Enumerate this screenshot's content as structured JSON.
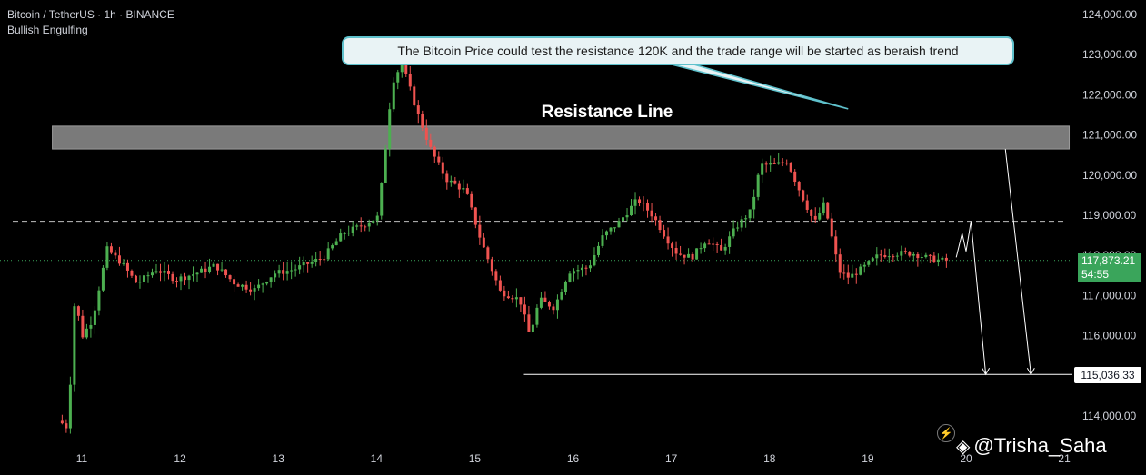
{
  "header": {
    "title": "Bitcoin / TetherUS · 1h · BINANCE",
    "subtitle": "Bullish Engulfing"
  },
  "annotation": {
    "callout_text": "The Bitcoin Price could test the resistance 120K and the trade range will be started as beraish trend",
    "resistance_label": "Resistance Line"
  },
  "price_tag": {
    "price": "117,873.21",
    "countdown": "54:55"
  },
  "level_tag": {
    "value": "115,036.33"
  },
  "watermark": {
    "text": "@Trisha_Saha",
    "logo_icon": "binance-logo-icon"
  },
  "colors": {
    "up": "#4caf50",
    "down": "#ef5350",
    "background": "#000000",
    "resistance_zone": "#7a7a7a",
    "callout_border": "#5fc1cc",
    "price_tag": "#3aa55b"
  },
  "chart_data": {
    "type": "candlestick",
    "symbol": "Bitcoin / TetherUS",
    "interval": "1h",
    "exchange": "BINANCE",
    "y_axis": {
      "ticks": [
        114000,
        115000,
        116000,
        117000,
        118000,
        119000,
        120000,
        121000,
        122000,
        123000,
        124000
      ],
      "tick_labels": [
        "114,000.00",
        "115,000.00",
        "116,000.00",
        "117,000.00",
        "118,000.00",
        "119,000.00",
        "120,000.00",
        "121,000.00",
        "122,000.00",
        "123,000.00",
        "124,000.00"
      ],
      "range": [
        113400,
        124300
      ]
    },
    "x_axis": {
      "tick_labels": [
        "11",
        "12",
        "13",
        "14",
        "15",
        "16",
        "17",
        "18",
        "19",
        "20",
        "21"
      ],
      "tick_days": [
        11,
        12,
        13,
        14,
        15,
        16,
        17,
        18,
        19,
        20,
        21
      ],
      "range": [
        10.7,
        21.1
      ]
    },
    "resistance_zone": {
      "low": 120650,
      "high": 121220,
      "from_day": 10.7,
      "to_day": 21.05
    },
    "dashed_level": 118850,
    "current_price": 117873.21,
    "target_level": 115036.33,
    "target_line_from_day": 15.5,
    "projection": [
      {
        "day": 19.9,
        "price": 117950
      },
      {
        "day": 19.96,
        "price": 118550
      },
      {
        "day": 20.0,
        "price": 118100
      },
      {
        "day": 20.05,
        "price": 118850
      },
      {
        "day": 20.2,
        "price": 115036
      }
    ],
    "projection_2": [
      {
        "day": 20.4,
        "price": 120650
      },
      {
        "day": 20.66,
        "price": 115036
      }
    ],
    "callout_pointer_day": 18.8,
    "callout_pointer_price": 121650,
    "anchors": [
      [
        10.8,
        113900
      ],
      [
        10.9,
        113700
      ],
      [
        10.97,
        116900
      ],
      [
        11.05,
        116000
      ],
      [
        11.15,
        116400
      ],
      [
        11.3,
        118150
      ],
      [
        11.45,
        117800
      ],
      [
        11.6,
        117300
      ],
      [
        11.8,
        117650
      ],
      [
        12.0,
        117400
      ],
      [
        12.2,
        117550
      ],
      [
        12.4,
        117750
      ],
      [
        12.6,
        117300
      ],
      [
        12.8,
        117150
      ],
      [
        13.0,
        117550
      ],
      [
        13.2,
        117650
      ],
      [
        13.5,
        117950
      ],
      [
        13.7,
        118550
      ],
      [
        13.9,
        118750
      ],
      [
        14.05,
        118950
      ],
      [
        14.1,
        119900
      ],
      [
        14.2,
        122300
      ],
      [
        14.3,
        122800
      ],
      [
        14.45,
        121600
      ],
      [
        14.6,
        120600
      ],
      [
        14.75,
        119900
      ],
      [
        14.95,
        119600
      ],
      [
        15.1,
        118400
      ],
      [
        15.3,
        117100
      ],
      [
        15.5,
        116900
      ],
      [
        15.6,
        116000
      ],
      [
        15.7,
        116900
      ],
      [
        15.85,
        116700
      ],
      [
        16.0,
        117600
      ],
      [
        16.2,
        117700
      ],
      [
        16.35,
        118500
      ],
      [
        16.5,
        118800
      ],
      [
        16.7,
        119400
      ],
      [
        16.85,
        119000
      ],
      [
        17.0,
        118400
      ],
      [
        17.1,
        118050
      ],
      [
        17.25,
        117950
      ],
      [
        17.4,
        118400
      ],
      [
        17.55,
        118100
      ],
      [
        17.7,
        118700
      ],
      [
        17.85,
        119100
      ],
      [
        17.95,
        120250
      ],
      [
        18.1,
        120250
      ],
      [
        18.22,
        120350
      ],
      [
        18.35,
        119600
      ],
      [
        18.5,
        118800
      ],
      [
        18.6,
        119300
      ],
      [
        18.75,
        117600
      ],
      [
        18.85,
        117450
      ],
      [
        19.0,
        117700
      ],
      [
        19.15,
        118000
      ],
      [
        19.3,
        118050
      ],
      [
        19.5,
        118050
      ],
      [
        19.7,
        117900
      ],
      [
        19.8,
        117873
      ]
    ]
  }
}
